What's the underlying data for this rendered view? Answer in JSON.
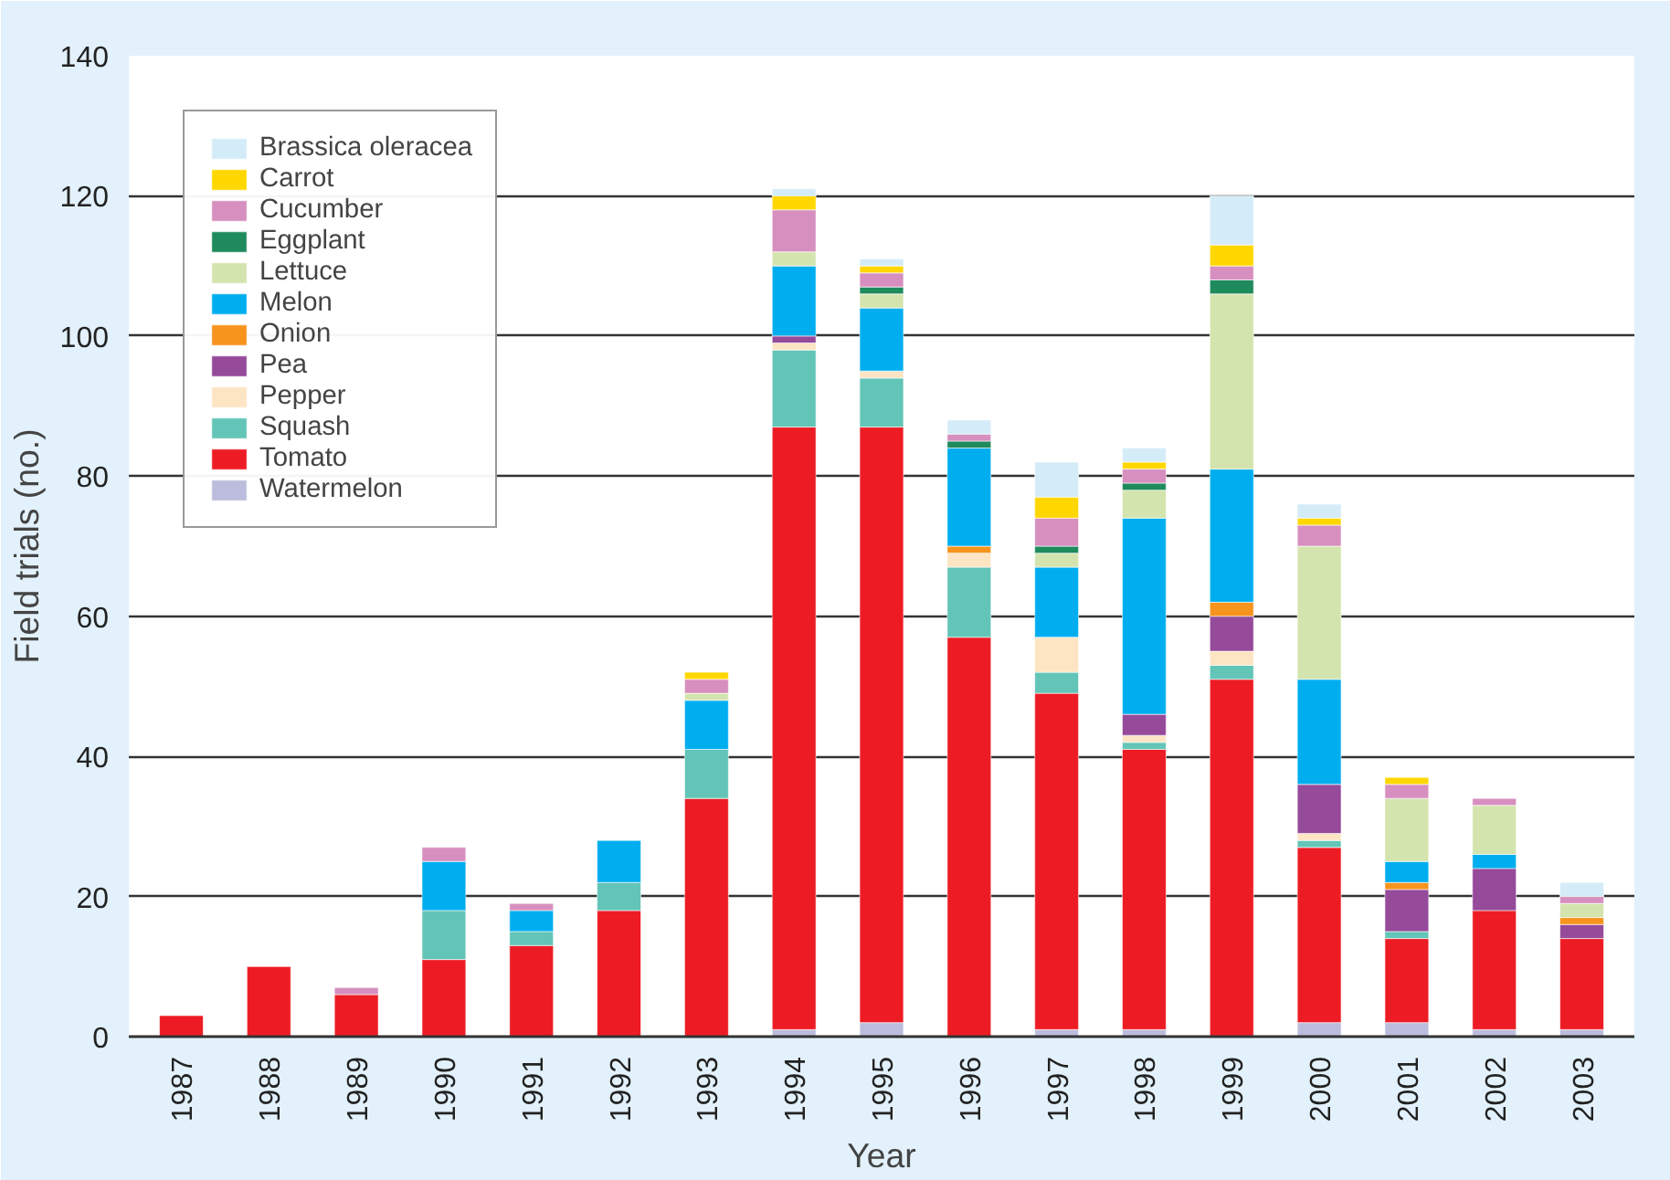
{
  "chart_data": {
    "type": "bar",
    "stacked": true,
    "xlabel": "Year",
    "ylabel": "Field trials (no.)",
    "categories": [
      "1987",
      "1988",
      "1989",
      "1990",
      "1991",
      "1992",
      "1993",
      "1994",
      "1995",
      "1996",
      "1997",
      "1998",
      "1999",
      "2000",
      "2001",
      "2002",
      "2003"
    ],
    "ylim": [
      0,
      140
    ],
    "yticks": [
      0,
      20,
      40,
      60,
      80,
      100,
      120,
      140
    ],
    "grid": "y",
    "legend": "top left",
    "series": [
      {
        "name": "Watermelon",
        "color": "#bcbddc",
        "values": [
          null,
          null,
          null,
          null,
          null,
          null,
          null,
          1,
          2,
          null,
          1,
          1,
          null,
          2,
          2,
          1,
          1
        ]
      },
      {
        "name": "Tomato",
        "color": "#ed1c24",
        "values": [
          3,
          10,
          6,
          11,
          13,
          18,
          34,
          86,
          85,
          57,
          48,
          40,
          51,
          25,
          12,
          17,
          13
        ]
      },
      {
        "name": "Squash",
        "color": "#62c5b7",
        "values": [
          null,
          null,
          null,
          7,
          2,
          4,
          7,
          11,
          7,
          10,
          3,
          1,
          2,
          1,
          1,
          null,
          null
        ]
      },
      {
        "name": "Pepper",
        "color": "#fde4c3",
        "values": [
          null,
          null,
          null,
          null,
          null,
          null,
          null,
          1,
          1,
          2,
          5,
          1,
          2,
          1,
          null,
          null,
          null
        ]
      },
      {
        "name": "Pea",
        "color": "#954a9a",
        "values": [
          null,
          null,
          null,
          null,
          null,
          null,
          null,
          1,
          null,
          null,
          null,
          3,
          5,
          7,
          6,
          6,
          2
        ]
      },
      {
        "name": "Onion",
        "color": "#f7941d",
        "values": [
          null,
          null,
          null,
          null,
          null,
          null,
          null,
          null,
          null,
          1,
          null,
          null,
          2,
          null,
          1,
          null,
          1
        ]
      },
      {
        "name": "Melon",
        "color": "#00aeef",
        "values": [
          null,
          null,
          null,
          7,
          3,
          6,
          7,
          10,
          9,
          14,
          10,
          28,
          19,
          15,
          3,
          2,
          null
        ]
      },
      {
        "name": "Lettuce",
        "color": "#d4e4ae",
        "values": [
          null,
          null,
          null,
          null,
          null,
          null,
          1,
          2,
          2,
          null,
          2,
          4,
          25,
          19,
          9,
          7,
          2
        ]
      },
      {
        "name": "Eggplant",
        "color": "#1f8a5c",
        "values": [
          null,
          null,
          null,
          null,
          null,
          null,
          null,
          null,
          1,
          1,
          1,
          1,
          2,
          null,
          null,
          null,
          null
        ]
      },
      {
        "name": "Cucumber",
        "color": "#d68fbf",
        "values": [
          null,
          null,
          1,
          2,
          1,
          null,
          2,
          6,
          2,
          1,
          4,
          2,
          2,
          3,
          2,
          1,
          1
        ]
      },
      {
        "name": "Carrot",
        "color": "#ffd700",
        "values": [
          null,
          null,
          null,
          null,
          null,
          null,
          1,
          2,
          1,
          null,
          3,
          1,
          3,
          1,
          1,
          null,
          null
        ]
      },
      {
        "name": "Brassica oleracea",
        "color": "#d4ecf8",
        "values": [
          null,
          null,
          null,
          null,
          null,
          null,
          null,
          1,
          1,
          2,
          5,
          2,
          7,
          2,
          null,
          null,
          2
        ]
      }
    ]
  }
}
